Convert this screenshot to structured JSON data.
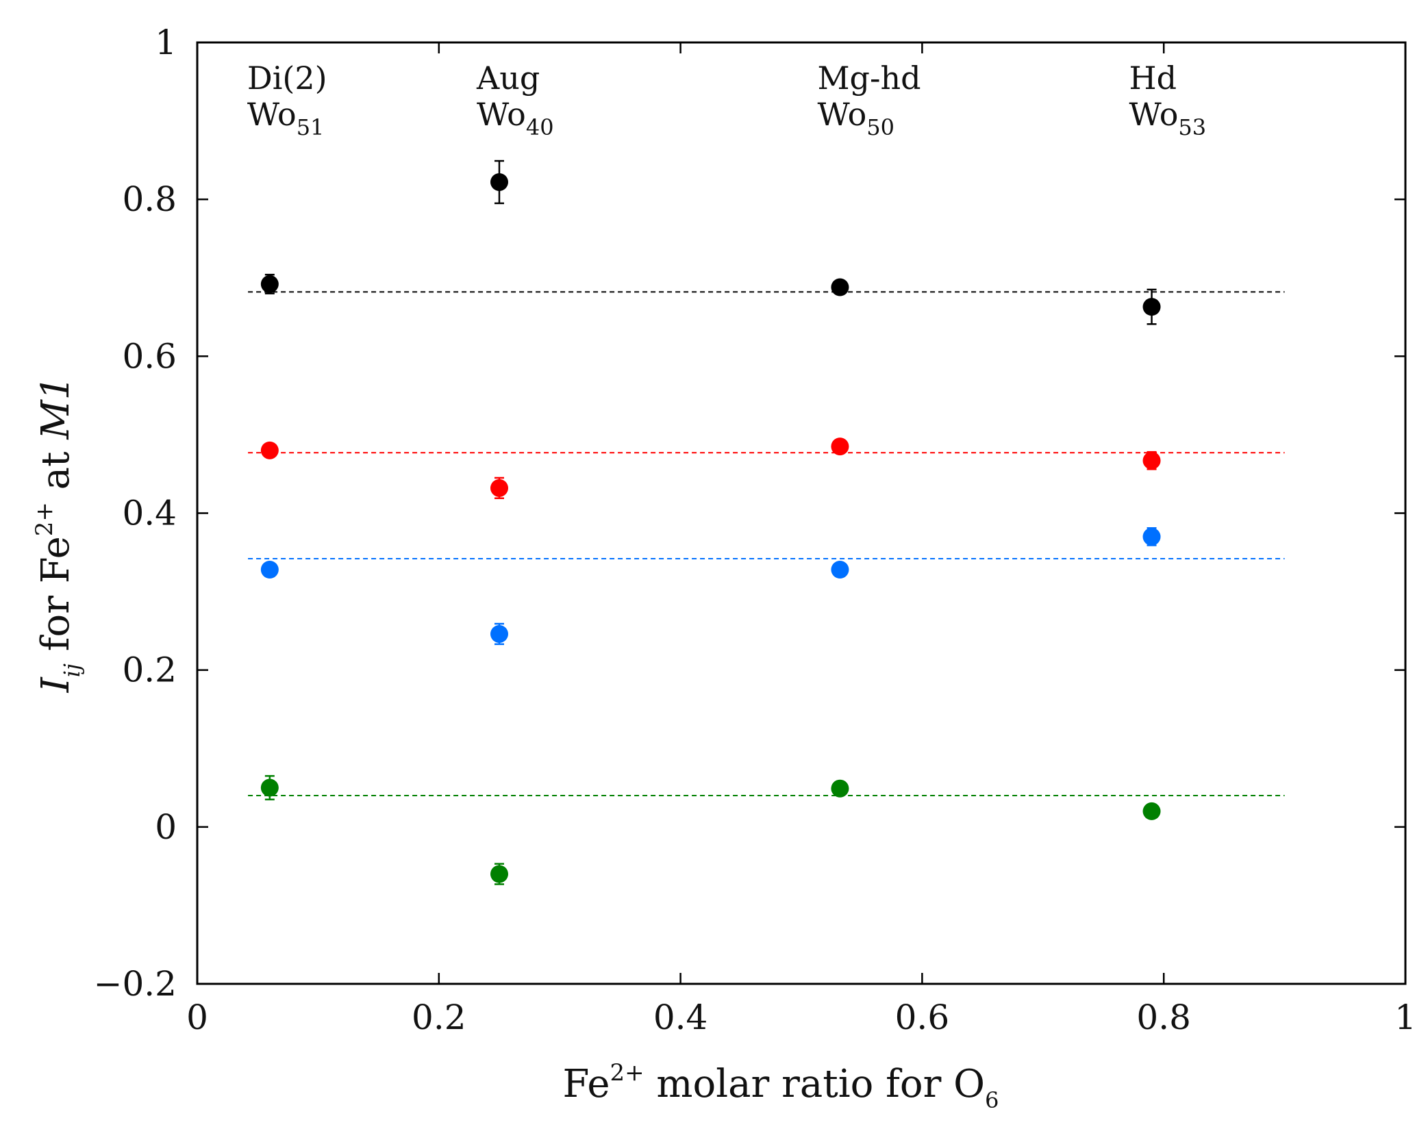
{
  "chart_data": {
    "type": "scatter",
    "xlabel": {
      "base": "Fe",
      "sup": "2+",
      "rest": " molar ratio for O",
      "sub": "6"
    },
    "ylabel": {
      "italic": "I",
      "sub": "ij",
      "mid": " for Fe",
      "sup": "2+",
      "rest": " at ",
      "italic2": "M1"
    },
    "xlim": [
      0,
      1
    ],
    "ylim": [
      -0.2,
      1
    ],
    "x_ticks": [
      "0",
      "0.2",
      "0.4",
      "0.6",
      "0.8",
      "1"
    ],
    "y_ticks": [
      "−0.2",
      "0",
      "0.2",
      "0.4",
      "0.6",
      "0.8",
      "1"
    ],
    "grid": false,
    "annotations": [
      {
        "x": 0.06,
        "name": "Di(2)",
        "wo_base": "Wo",
        "wo_sub": "51"
      },
      {
        "x": 0.25,
        "name": "Aug",
        "wo_base": "Wo",
        "wo_sub": "40"
      },
      {
        "x": 0.532,
        "name": "Mg-hd",
        "wo_base": "Wo",
        "wo_sub": "50"
      },
      {
        "x": 0.79,
        "name": "Hd",
        "wo_base": "Wo",
        "wo_sub": "53"
      }
    ],
    "series": [
      {
        "color": "#000000",
        "x": [
          0.06,
          0.25,
          0.532,
          0.79
        ],
        "y": [
          0.692,
          0.822,
          0.688,
          0.663
        ],
        "err": [
          0.012,
          0.027,
          0.008,
          0.022
        ],
        "mean_line": 0.682
      },
      {
        "color": "#ff0000",
        "x": [
          0.06,
          0.25,
          0.532,
          0.79
        ],
        "y": [
          0.48,
          0.432,
          0.485,
          0.467
        ],
        "err": [
          0.008,
          0.013,
          0.008,
          0.011
        ],
        "mean_line": 0.477
      },
      {
        "color": "#0070ff",
        "x": [
          0.06,
          0.25,
          0.532,
          0.79
        ],
        "y": [
          0.328,
          0.246,
          0.328,
          0.37
        ],
        "err": [
          0.008,
          0.013,
          0.008,
          0.011
        ],
        "mean_line": 0.342
      },
      {
        "color": "#008000",
        "x": [
          0.06,
          0.25,
          0.532,
          0.79
        ],
        "y": [
          0.05,
          -0.06,
          0.049,
          0.02
        ],
        "err": [
          0.015,
          0.013,
          0.008,
          0.008
        ],
        "mean_line": 0.04
      }
    ],
    "mean_line_x_range": [
      0.042,
      0.9
    ]
  }
}
